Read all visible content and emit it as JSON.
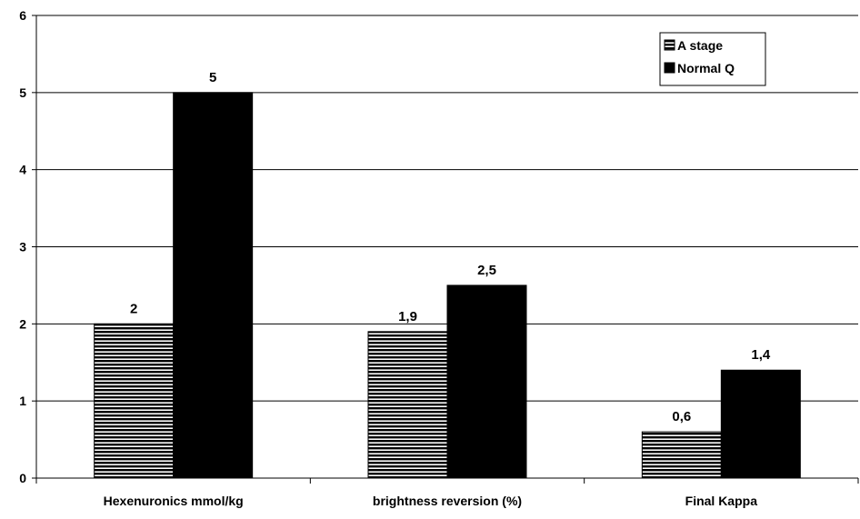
{
  "chart_data": {
    "type": "bar",
    "title": "",
    "xlabel": "",
    "ylabel": "",
    "categories": [
      "Hexenuronics mmol/kg",
      "brightness reversion (%)",
      "Final Kappa"
    ],
    "series": [
      {
        "name": "A stage",
        "values": [
          2,
          1.9,
          0.6
        ],
        "data_labels": [
          "2",
          "1,9",
          "0,6"
        ],
        "pattern": "horizontal-hatch",
        "color": "#000000"
      },
      {
        "name": "Normal Q",
        "values": [
          5,
          2.5,
          1.4
        ],
        "data_labels": [
          "5",
          "2,5",
          "1,4"
        ],
        "pattern": "solid",
        "color": "#000000"
      }
    ],
    "ylim": [
      0,
      6
    ],
    "yticks": [
      0,
      1,
      2,
      3,
      4,
      5,
      6
    ],
    "ytick_labels": [
      "0",
      "1",
      "2",
      "3",
      "4",
      "5",
      "6"
    ],
    "grid": true,
    "legend_position": "top-right"
  }
}
